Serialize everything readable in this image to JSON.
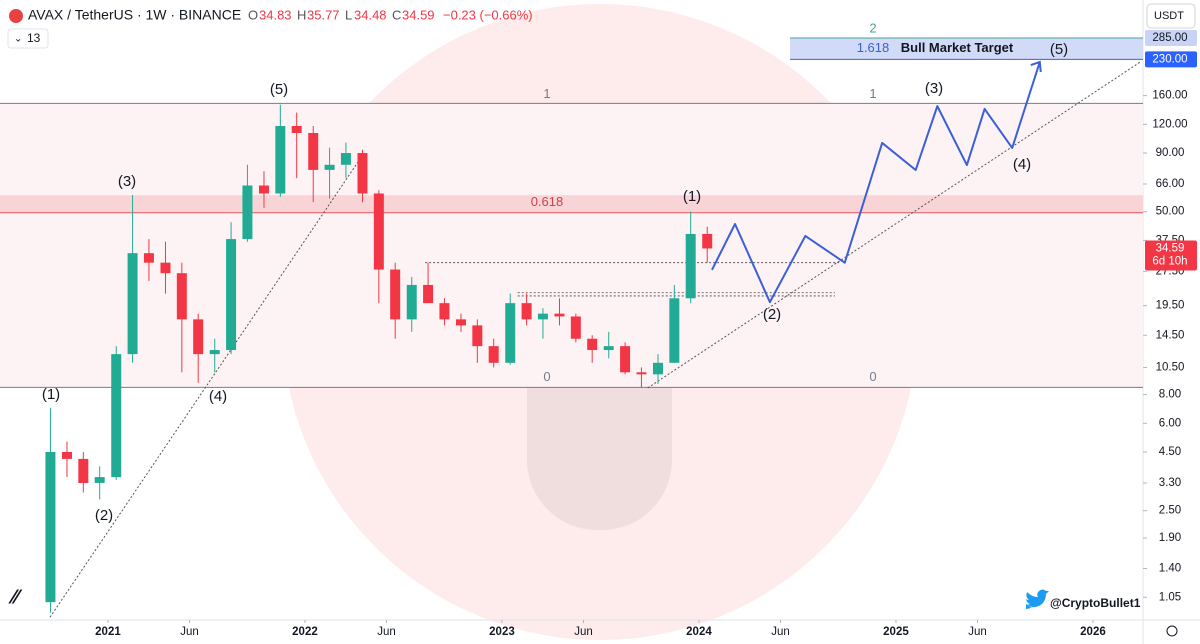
{
  "header": {
    "symbol": "AVAX / TetherUS · 1W · BINANCE",
    "o_label": "O",
    "open": 34.83,
    "h_label": "H",
    "high": 35.77,
    "l_label": "L",
    "low": 34.48,
    "c_label": "C",
    "close": 34.59,
    "change": "−0.23 (−0.66%)",
    "indicator_count": 13,
    "currency": "USDT"
  },
  "chart_data": {
    "type": "candlestick",
    "log_scale": true,
    "xlim": [
      2020.452,
      2026.254
    ],
    "xticks": [
      2021,
      {
        "value": 2021.414,
        "label": "Jun"
      },
      2022,
      {
        "value": 2022.414,
        "label": "Jun"
      },
      2023,
      {
        "value": 2023.414,
        "label": "Jun"
      },
      2024,
      {
        "value": 2024.414,
        "label": "Jun"
      },
      2025,
      {
        "value": 2025.414,
        "label": "Jun"
      },
      2026
    ],
    "ylim": [
      0.836,
      417
    ],
    "yticks": [
      {
        "value": 160,
        "label": "160.00"
      },
      {
        "value": 120,
        "label": "120.00"
      },
      {
        "value": 90,
        "label": "90.00"
      },
      {
        "value": 66,
        "label": "66.00"
      },
      {
        "value": 50,
        "label": "50.00"
      },
      {
        "value": 37.5,
        "label": "37.50"
      },
      {
        "value": 27.5,
        "label": "27.50"
      },
      {
        "value": 19.5,
        "label": "19.50"
      },
      {
        "value": 14.5,
        "label": "14.50"
      },
      {
        "value": 10.5,
        "label": "10.50"
      },
      {
        "value": 8,
        "label": "8.00"
      },
      {
        "value": 6,
        "label": "6.00"
      },
      {
        "value": 4.5,
        "label": "4.50"
      },
      {
        "value": 3.3,
        "label": "3.30"
      },
      {
        "value": 2.5,
        "label": "2.50"
      },
      {
        "value": 1.9,
        "label": "1.90"
      },
      {
        "value": 1.4,
        "label": "1.40"
      },
      {
        "value": 1.05,
        "label": "1.05"
      }
    ],
    "up_color": "#22ab94",
    "down_color": "#f23645",
    "x": [
      2020.708,
      2020.792,
      2020.875,
      2020.958,
      2021.042,
      2021.125,
      2021.208,
      2021.292,
      2021.375,
      2021.458,
      2021.542,
      2021.625,
      2021.708,
      2021.792,
      2021.875,
      2021.958,
      2022.042,
      2022.125,
      2022.208,
      2022.292,
      2022.375,
      2022.458,
      2022.542,
      2022.625,
      2022.708,
      2022.792,
      2022.875,
      2022.958,
      2023.042,
      2023.125,
      2023.208,
      2023.292,
      2023.375,
      2023.458,
      2023.542,
      2023.625,
      2023.708,
      2023.792,
      2023.875,
      2023.958,
      2024.042
    ],
    "open": [
      1.0,
      4.5,
      4.2,
      3.3,
      3.5,
      12,
      33,
      30,
      27,
      17,
      12,
      12.5,
      38,
      65,
      60,
      118,
      110,
      76,
      80,
      90,
      60,
      28,
      17,
      24,
      20,
      17,
      16,
      13,
      11,
      20,
      17,
      18,
      17.5,
      14,
      12.5,
      13,
      10,
      9.8,
      11,
      21,
      40
    ],
    "high": [
      7.0,
      5,
      4.5,
      3.9,
      13,
      59,
      38,
      37,
      30,
      18,
      14,
      45,
      80,
      75,
      146,
      135,
      118,
      95,
      100,
      93,
      62,
      30,
      26,
      30,
      21,
      18,
      17,
      14,
      22,
      22,
      19,
      21,
      18,
      14.5,
      15,
      13.5,
      10.5,
      12,
      24,
      50,
      43
    ],
    "low": [
      0.9,
      3.5,
      3.0,
      2.8,
      3.4,
      11,
      25,
      22,
      10,
      9,
      10,
      12,
      37,
      52,
      58,
      70,
      55,
      57,
      70,
      55,
      20,
      14,
      15,
      20,
      16,
      15,
      11,
      10.5,
      10.8,
      16,
      14,
      16,
      13.5,
      11,
      11.5,
      9.8,
      8.6,
      8.9,
      11,
      20,
      30
    ],
    "close": [
      4.5,
      4.2,
      3.3,
      3.5,
      12,
      33,
      30,
      27,
      17,
      12,
      12.5,
      38,
      65,
      60,
      118,
      110,
      76,
      80,
      90,
      60,
      28,
      17,
      24,
      20,
      17,
      16,
      13,
      11,
      20,
      17,
      18,
      17.5,
      14,
      12.5,
      13,
      10,
      9.8,
      11,
      21,
      40,
      34.59
    ],
    "fib_levels": [
      {
        "label": "1",
        "value": 148
      },
      {
        "label": "0.618",
        "value": 49.5
      },
      {
        "label": "0",
        "value": 8.6
      },
      {
        "label": "2",
        "value": 285
      },
      {
        "label": "1.618",
        "value": 230
      }
    ],
    "resistance_zone": [
      49.5,
      59
    ],
    "target_label": "Bull Market Target",
    "projection": {
      "color": "#3b5fd9",
      "x": [
        2024.066,
        2024.183,
        2024.36,
        2024.54,
        2024.74,
        2024.93,
        2025.1,
        2025.21,
        2025.36,
        2025.45,
        2025.59,
        2025.73
      ],
      "values": [
        27.9,
        44.2,
        20.2,
        39.2,
        30.0,
        99.6,
        75.9,
        144,
        79.8,
        140,
        94.7,
        224
      ]
    },
    "trendlines": [
      {
        "x": [
          2020.706,
          2022.3
        ],
        "values": [
          0.86,
          90
        ]
      },
      {
        "x": [
          2023.74,
          2026.24
        ],
        "values": [
          8.55,
          224
        ]
      }
    ],
    "levels": [
      {
        "x": [
          2022.61,
          2024.72
        ],
        "values": [
          30,
          30
        ]
      },
      {
        "x": [
          2023.08,
          2024.69
        ],
        "values": [
          22.2,
          22.2
        ]
      },
      {
        "x": [
          2023.08,
          2024.69
        ],
        "values": [
          21.5,
          21.5
        ]
      }
    ],
    "wave_labels": [
      "(1)",
      "(2)",
      "(3)",
      "(4)",
      "(5)",
      "(1)",
      "(2)",
      "(3)",
      "(4)",
      "(5)"
    ],
    "price_tags": [
      {
        "value": 285,
        "label": "285.00"
      },
      {
        "value": 230,
        "label": "230.00"
      }
    ],
    "last_price": 34.59,
    "countdown": "6d 10h"
  },
  "watermark": "@CryptoBullet1"
}
